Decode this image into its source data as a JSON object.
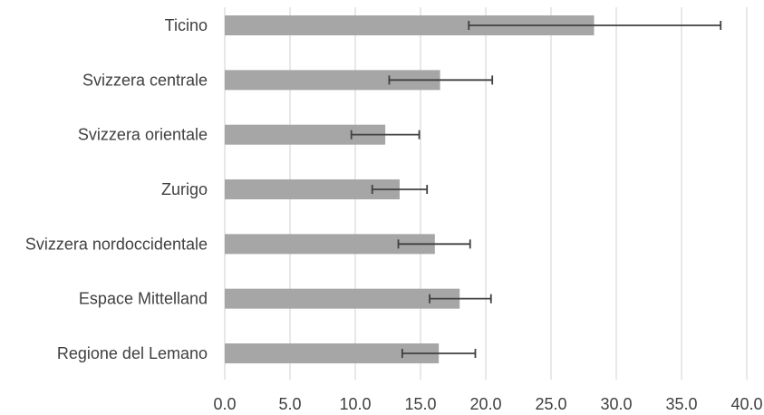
{
  "chart_data": {
    "type": "bar",
    "orientation": "horizontal",
    "title": "",
    "xlabel": "",
    "ylabel": "",
    "categories": [
      "Ticino",
      "Svizzera centrale",
      "Svizzera orientale",
      "Zurigo",
      "Svizzera nordoccidentale",
      "Espace Mittelland",
      "Regione del Lemano"
    ],
    "values": [
      28.3,
      16.5,
      12.3,
      13.4,
      16.1,
      18.0,
      16.4
    ],
    "error_low": [
      18.7,
      12.6,
      9.7,
      11.3,
      13.3,
      15.7,
      13.6
    ],
    "error_high": [
      38.0,
      20.5,
      14.9,
      15.5,
      18.8,
      20.4,
      19.2
    ],
    "xlim": [
      0,
      40
    ],
    "xticks": [
      "0.0",
      "5.0",
      "10.0",
      "15.0",
      "20.0",
      "25.0",
      "30.0",
      "35.0",
      "40.0"
    ],
    "grid": true,
    "legend": "none",
    "colors": {
      "bar": "#a6a6a6",
      "error_bar": "#404040",
      "grid": "#d9d9d9",
      "text": "#404040"
    }
  }
}
